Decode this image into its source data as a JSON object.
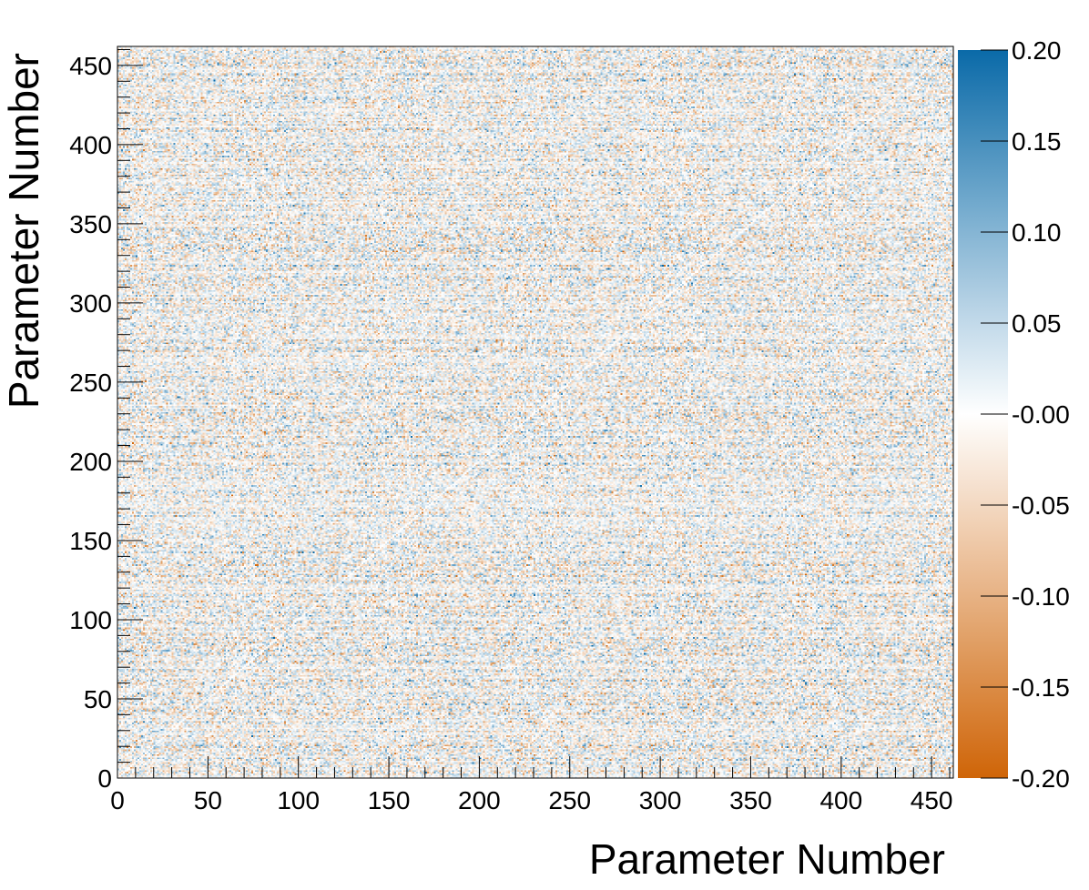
{
  "chart_data": {
    "type": "heatmap",
    "title": "",
    "xlabel": "Parameter Number",
    "ylabel": "Parameter Number",
    "xlim": [
      0,
      462
    ],
    "ylim": [
      0,
      462
    ],
    "n_bins": 462,
    "x_ticks": [
      "0",
      "50",
      "100",
      "150",
      "200",
      "250",
      "300",
      "350",
      "400",
      "450"
    ],
    "y_ticks": [
      "0",
      "50",
      "100",
      "150",
      "200",
      "250",
      "300",
      "350",
      "400",
      "450"
    ],
    "x_tick_values": [
      0,
      50,
      100,
      150,
      200,
      250,
      300,
      350,
      400,
      450
    ],
    "y_tick_values": [
      0,
      50,
      100,
      150,
      200,
      250,
      300,
      350,
      400,
      450
    ],
    "zlim": [
      -0.2,
      0.2
    ],
    "colorbar": {
      "labels": [
        "0.20",
        "0.15",
        "0.10",
        "0.05",
        "-0.00",
        "-0.05",
        "-0.10",
        "-0.15",
        "-0.20"
      ],
      "values": [
        0.2,
        0.15,
        0.1,
        0.05,
        0.0,
        -0.05,
        -0.1,
        -0.15,
        -0.2
      ],
      "color_high": "#0a6aa8",
      "color_mid": "#ffffff",
      "color_low": "#cf6508"
    },
    "grid": false
  }
}
